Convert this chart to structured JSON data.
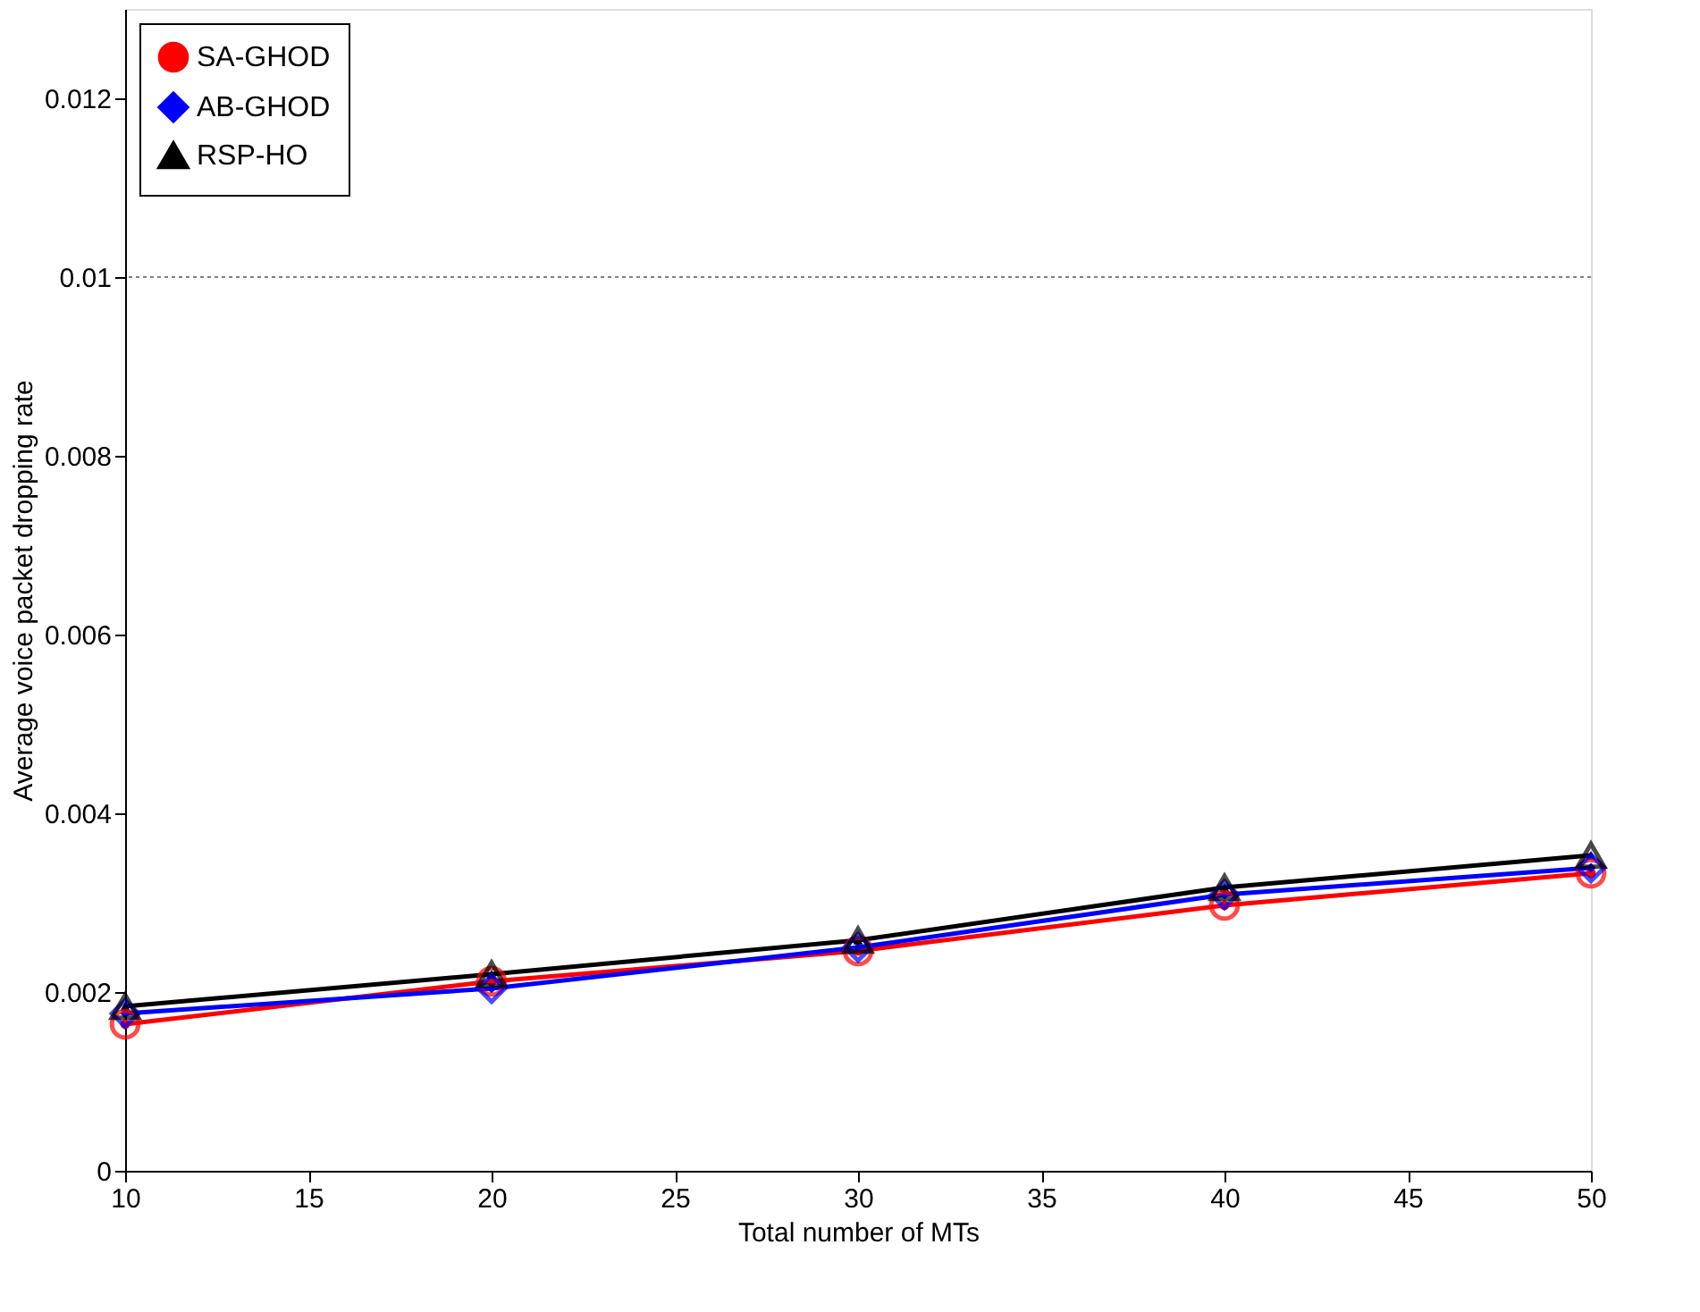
{
  "chart_data": {
    "type": "line",
    "xlabel": "Total number of MTs",
    "ylabel": "Average voice packet dropping rate",
    "x": [
      10,
      20,
      30,
      40,
      50
    ],
    "series": [
      {
        "name": "SA-GHOD",
        "color": "#ff0000",
        "marker": "circle",
        "values": [
          0.00164,
          0.00212,
          0.00246,
          0.00297,
          0.00333
        ]
      },
      {
        "name": "AB-GHOD",
        "color": "#0000ff",
        "marker": "diamond",
        "values": [
          0.00176,
          0.00204,
          0.0025,
          0.00309,
          0.00339
        ]
      },
      {
        "name": "RSP-HO",
        "color": "#000000",
        "marker": "triangle",
        "values": [
          0.00184,
          0.0022,
          0.00258,
          0.00317,
          0.00353
        ]
      }
    ],
    "xlim": [
      10,
      50
    ],
    "xticks": [
      10,
      15,
      20,
      25,
      30,
      35,
      40,
      45,
      50
    ],
    "ylim": [
      0,
      0.013
    ],
    "yticks": [
      0,
      0.002,
      0.004,
      0.006,
      0.008,
      0.01,
      0.012
    ],
    "ref_lines": [
      {
        "axis": "y",
        "value": 0.01,
        "color": "#808080",
        "line_style": "dotted"
      }
    ],
    "grid": false,
    "legend": "top left",
    "line_style": "solid"
  }
}
